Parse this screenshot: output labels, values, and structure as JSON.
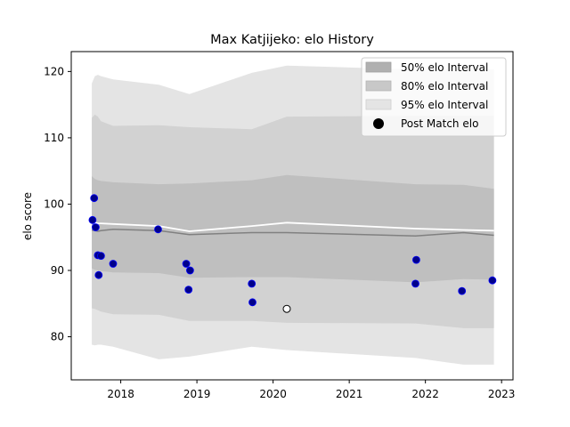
{
  "chart_data": {
    "type": "area",
    "title": "Max Katjijeko: elo History",
    "xlabel": "",
    "ylabel": "elo score",
    "xlim": [
      2017.35,
      2023.15
    ],
    "ylim": [
      73.5,
      123
    ],
    "x_ticks": [
      2018,
      2019,
      2020,
      2021,
      2022,
      2023
    ],
    "x_tick_labels": [
      "2018",
      "2019",
      "2020",
      "2021",
      "2022",
      "2023"
    ],
    "y_ticks": [
      80,
      90,
      100,
      110,
      120
    ],
    "y_tick_labels": [
      "80",
      "90",
      "100",
      "110",
      "120"
    ],
    "grid": false,
    "legend_position": "top-right",
    "legend": {
      "i50": "50% elo Interval",
      "i80": "80% elo Interval",
      "i95": "95% elo Interval",
      "post": "Post Match elo"
    },
    "colors": {
      "band95": "#e4e4e4",
      "band80": "#d2d2d2",
      "band50": "#bfbfbf",
      "median_line": "#808080",
      "mean_line": "#ffffff",
      "point_fill": "#00008b",
      "point_edge": "#0000ff",
      "highlight_fill": "#ffffff",
      "highlight_edge": "#000000"
    },
    "x": [
      2017.62,
      2017.66,
      2017.7,
      2017.74,
      2017.9,
      2018.5,
      2018.9,
      2019.72,
      2020.18,
      2021.87,
      2022.5,
      2022.9
    ],
    "band95_upper": [
      118.2,
      119.3,
      119.5,
      119.3,
      118.8,
      118.0,
      116.6,
      119.8,
      120.9,
      120.3,
      120.3,
      120.3
    ],
    "band95_lower": [
      78.8,
      78.7,
      78.8,
      78.8,
      78.5,
      76.6,
      77.0,
      78.5,
      78.0,
      76.8,
      75.8,
      75.8
    ],
    "band80_upper": [
      113.0,
      113.5,
      113.2,
      112.5,
      111.8,
      111.9,
      111.6,
      111.3,
      113.2,
      113.3,
      113.3,
      113.3
    ],
    "band80_lower": [
      84.3,
      84.2,
      84.0,
      83.8,
      83.4,
      83.3,
      82.4,
      82.4,
      82.1,
      82.0,
      81.3,
      81.3
    ],
    "band50_upper": [
      104.2,
      103.8,
      103.6,
      103.5,
      103.3,
      103.0,
      103.1,
      103.6,
      104.4,
      103.0,
      102.9,
      102.3
    ],
    "band50_lower": [
      90.3,
      90.1,
      90.0,
      89.9,
      89.7,
      89.6,
      88.9,
      89.0,
      89.0,
      88.2,
      88.7,
      88.6
    ],
    "median": [
      96.1,
      96.0,
      95.9,
      96.0,
      96.2,
      96.0,
      95.4,
      95.7,
      95.7,
      95.2,
      95.7,
      95.3
    ],
    "mean": [
      97.2,
      97.2,
      97.1,
      97.1,
      97.0,
      96.7,
      95.9,
      96.7,
      97.2,
      96.3,
      96.1,
      96.0
    ],
    "post_match": [
      {
        "x": 2017.63,
        "y": 97.6
      },
      {
        "x": 2017.65,
        "y": 100.9
      },
      {
        "x": 2017.67,
        "y": 96.5
      },
      {
        "x": 2017.7,
        "y": 92.3
      },
      {
        "x": 2017.71,
        "y": 89.3
      },
      {
        "x": 2017.74,
        "y": 92.2
      },
      {
        "x": 2017.9,
        "y": 91.0
      },
      {
        "x": 2018.49,
        "y": 96.2
      },
      {
        "x": 2018.86,
        "y": 91.0
      },
      {
        "x": 2018.89,
        "y": 87.1
      },
      {
        "x": 2018.91,
        "y": 90.0
      },
      {
        "x": 2019.72,
        "y": 88.0
      },
      {
        "x": 2019.73,
        "y": 85.2
      },
      {
        "x": 2021.87,
        "y": 88.0
      },
      {
        "x": 2021.88,
        "y": 91.6
      },
      {
        "x": 2022.48,
        "y": 86.9
      },
      {
        "x": 2022.88,
        "y": 88.5
      }
    ],
    "highlight_point": {
      "x": 2020.18,
      "y": 84.2
    }
  }
}
